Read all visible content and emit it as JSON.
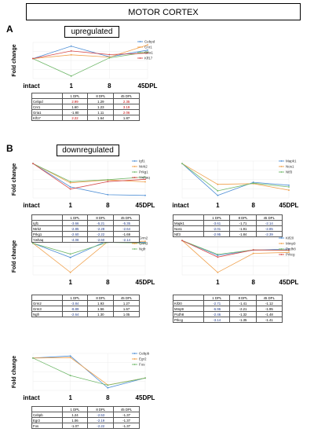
{
  "title": "MOTOR CORTEX",
  "sections": {
    "A": {
      "letter": "A",
      "label": "upregulated"
    },
    "B": {
      "letter": "B",
      "label": "downregulated"
    }
  },
  "colors": {
    "c1": "#4e8fd6",
    "c2": "#f0a04b",
    "c3": "#70b86a",
    "c4": "#d64b4b"
  },
  "table_headers": [
    "1 DPL",
    "8 DPL",
    "45 DPL"
  ],
  "chart_data": [
    {
      "id": "A1",
      "type": "line",
      "ylabel": "Fold change",
      "categories": [
        "intact",
        "1",
        "8",
        "45DPL"
      ],
      "series": [
        {
          "name": "Cebpd",
          "color": "#4e8fd6",
          "values": [
            1,
            2.99,
            1.29,
            2.35
          ]
        },
        {
          "name": "Cnr1",
          "color": "#f0a04b",
          "values": [
            1,
            1.6,
            1.23,
            3.19
          ]
        },
        {
          "name": "Gria1",
          "color": "#70b86a",
          "values": [
            1,
            -1.8,
            1.11,
            2.06
          ]
        },
        {
          "name": "Klf17",
          "color": "#d64b4b",
          "values": [
            1,
            2.22,
            1.64,
            1.87
          ]
        }
      ]
    },
    {
      "id": "B1",
      "type": "line",
      "ylabel": "Fold change",
      "categories": [
        "intact",
        "1",
        "8",
        "45DPL"
      ],
      "series": [
        {
          "name": "Igf1",
          "color": "#4e8fd6",
          "values": [
            1,
            -3.66,
            -5.21,
            -5.35
          ]
        },
        {
          "name": "Ntrk2",
          "color": "#f0a04b",
          "values": [
            1,
            -2.85,
            -2.28,
            -2.64
          ]
        },
        {
          "name": "Prkg1",
          "color": "#70b86a",
          "values": [
            1,
            -2.6,
            -2.22,
            -1.69
          ]
        },
        {
          "name": "Ywhaq",
          "color": "#d64b4b",
          "values": [
            1,
            -4.08,
            -2.6,
            -2.14
          ]
        }
      ]
    },
    {
      "id": "B2",
      "type": "line",
      "ylabel": "",
      "categories": [
        "intact",
        "1",
        "8",
        "45DPL"
      ],
      "series": [
        {
          "name": "Mapk1",
          "color": "#4e8fd6",
          "values": [
            1,
            -3.61,
            -1.71,
            -2.14
          ]
        },
        {
          "name": "Nos1",
          "color": "#f0a04b",
          "values": [
            1,
            -2.01,
            -1.91,
            -2.85
          ]
        },
        {
          "name": "Ntf3",
          "color": "#70b86a",
          "values": [
            1,
            -2.95,
            -1.84,
            -2.39
          ]
        }
      ]
    },
    {
      "id": "B3",
      "type": "line",
      "ylabel": "Fold change",
      "categories": [
        "",
        "1",
        "8",
        "45DPL"
      ],
      "series": [
        {
          "name": "Grm2",
          "color": "#4e8fd6",
          "values": [
            1,
            -3.84,
            1.93,
            1.27
          ]
        },
        {
          "name": "Grm3",
          "color": "#f0a04b",
          "values": [
            1,
            -8.89,
            1.56,
            1.67
          ]
        },
        {
          "name": "Ngfr",
          "color": "#70b86a",
          "values": [
            1,
            -2.64,
            1.3,
            1.05
          ]
        }
      ]
    },
    {
      "id": "B4",
      "type": "line",
      "ylabel": "",
      "categories": [
        "",
        "1",
        "8",
        "45DPL"
      ],
      "series": [
        {
          "name": "Kif20",
          "color": "#4e8fd6",
          "values": [
            1,
            -2.71,
            -1.41,
            -1.12
          ]
        },
        {
          "name": "Mmp9",
          "color": "#f0a04b",
          "values": [
            1,
            -6.96,
            -2.21,
            -1.95
          ]
        },
        {
          "name": "Pcdh8",
          "color": "#70b86a",
          "values": [
            1,
            -2.46,
            -1.32,
            -1.48
          ]
        },
        {
          "name": "Prkcg",
          "color": "#d64b4b",
          "values": [
            1,
            -3.14,
            -1.35,
            -1.41
          ]
        }
      ]
    },
    {
      "id": "B5",
      "type": "line",
      "ylabel": "Fold change",
      "categories": [
        "intact",
        "1",
        "8",
        "45DPL"
      ],
      "series": [
        {
          "name": "Cebpb",
          "color": "#4e8fd6",
          "values": [
            1,
            1.24,
            -2.53,
            -1.37
          ]
        },
        {
          "name": "Egr2",
          "color": "#f0a04b",
          "values": [
            1,
            1.06,
            -2.19,
            -1.37
          ]
        },
        {
          "name": "Fos",
          "color": "#70b86a",
          "values": [
            1,
            -1.07,
            -2.22,
            -1.37
          ]
        }
      ]
    }
  ],
  "tables": {
    "A1": [
      {
        "gene": "Cebpd",
        "v": [
          "2.99",
          "1.29",
          "2.35"
        ],
        "hl": [
          true,
          false,
          true
        ]
      },
      {
        "gene": "Cnr1",
        "v": [
          "1.60",
          "1.23",
          "3.19"
        ],
        "hl": [
          false,
          false,
          true
        ]
      },
      {
        "gene": "Gria1",
        "v": [
          "-1.80",
          "1.11",
          "2.06"
        ],
        "hl": [
          false,
          false,
          true
        ]
      },
      {
        "gene": "Klf17",
        "v": [
          "2.22",
          "1.64",
          "1.87"
        ],
        "hl": [
          true,
          false,
          false
        ]
      }
    ],
    "B1": [
      {
        "gene": "Igf1",
        "v": [
          "-3.66",
          "-5.21",
          "-5.35"
        ],
        "hl": [
          true,
          true,
          true
        ]
      },
      {
        "gene": "Ntrk2",
        "v": [
          "-2.85",
          "-2.28",
          "-2.64"
        ],
        "hl": [
          true,
          true,
          true
        ]
      },
      {
        "gene": "Prkg1",
        "v": [
          "-2.60",
          "-2.22",
          "-1.69"
        ],
        "hl": [
          true,
          true,
          false
        ]
      },
      {
        "gene": "Ywhaq",
        "v": [
          "-4.08",
          "-2.60",
          "-2.14"
        ],
        "hl": [
          true,
          true,
          true
        ]
      }
    ],
    "B2": [
      {
        "gene": "Mapk1",
        "v": [
          "-3.61",
          "-1.71",
          "-2.14"
        ],
        "hl": [
          true,
          false,
          true
        ]
      },
      {
        "gene": "Nos1",
        "v": [
          "-2.01",
          "-1.91",
          "-2.85"
        ],
        "hl": [
          true,
          false,
          true
        ]
      },
      {
        "gene": "Ntf3",
        "v": [
          "-2.95",
          "-1.84",
          "-2.39"
        ],
        "hl": [
          true,
          false,
          true
        ]
      }
    ],
    "B3": [
      {
        "gene": "Grm2",
        "v": [
          "-3.84",
          "1.93",
          "1.27"
        ],
        "hl": [
          true,
          false,
          false
        ]
      },
      {
        "gene": "Grm3",
        "v": [
          "-8.89",
          "1.56",
          "1.67"
        ],
        "hl": [
          true,
          false,
          false
        ]
      },
      {
        "gene": "Ngfr",
        "v": [
          "-2.64",
          "1.30",
          "1.05"
        ],
        "hl": [
          true,
          false,
          false
        ]
      }
    ],
    "B4": [
      {
        "gene": "Kif20",
        "v": [
          "-2.71",
          "-1.41",
          "-1.12"
        ],
        "hl": [
          true,
          false,
          false
        ]
      },
      {
        "gene": "Mmp9",
        "v": [
          "-6.96",
          "-2.21",
          "-1.95"
        ],
        "hl": [
          true,
          false,
          false
        ]
      },
      {
        "gene": "Pcdh8",
        "v": [
          "-2.46",
          "-1.32",
          "-1.48"
        ],
        "hl": [
          true,
          false,
          false
        ]
      },
      {
        "gene": "Prkcg",
        "v": [
          "-3.14",
          "-1.35",
          "-1.41"
        ],
        "hl": [
          true,
          false,
          false
        ]
      }
    ],
    "B5": [
      {
        "gene": "Cebpb",
        "v": [
          "1.24",
          "-2.53",
          "-1.37"
        ],
        "hl": [
          false,
          true,
          false
        ]
      },
      {
        "gene": "Egr2",
        "v": [
          "1.06",
          "-2.19",
          "-1.37"
        ],
        "hl": [
          false,
          true,
          false
        ]
      },
      {
        "gene": "Fos",
        "v": [
          "-1.07",
          "-2.22",
          "-1.37"
        ],
        "hl": [
          false,
          true,
          false
        ]
      }
    ]
  }
}
